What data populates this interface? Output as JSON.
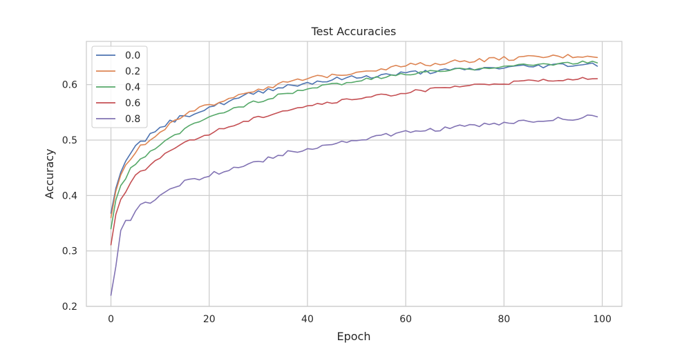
{
  "chart_data": {
    "type": "line",
    "title": "Test Accuracies",
    "xlabel": "Epoch",
    "ylabel": "Accuracy",
    "xlim": [
      -5,
      104
    ],
    "ylim": [
      0.2,
      0.678
    ],
    "xticks": [
      0,
      20,
      40,
      60,
      80,
      100
    ],
    "yticks": [
      0.2,
      0.3,
      0.4,
      0.5,
      0.6
    ],
    "grid": true,
    "legend_position": "top-left",
    "series": [
      {
        "name": "0.0",
        "color": "#4c72b0",
        "anchors": [
          [
            0,
            0.368
          ],
          [
            1,
            0.413
          ],
          [
            2,
            0.442
          ],
          [
            3,
            0.462
          ],
          [
            4,
            0.476
          ],
          [
            5,
            0.49
          ],
          [
            6,
            0.498
          ],
          [
            7,
            0.498
          ],
          [
            8,
            0.512
          ],
          [
            9,
            0.515
          ],
          [
            10,
            0.52
          ],
          [
            12,
            0.532
          ],
          [
            14,
            0.54
          ],
          [
            16,
            0.546
          ],
          [
            18,
            0.552
          ],
          [
            20,
            0.56
          ],
          [
            22,
            0.564
          ],
          [
            24,
            0.57
          ],
          [
            26,
            0.575
          ],
          [
            28,
            0.582
          ],
          [
            30,
            0.586
          ],
          [
            32,
            0.591
          ],
          [
            34,
            0.595
          ],
          [
            36,
            0.598
          ],
          [
            38,
            0.6
          ],
          [
            40,
            0.603
          ],
          [
            42,
            0.606
          ],
          [
            44,
            0.607
          ],
          [
            46,
            0.61
          ],
          [
            48,
            0.612
          ],
          [
            50,
            0.613
          ],
          [
            54,
            0.616
          ],
          [
            58,
            0.619
          ],
          [
            62,
            0.622
          ],
          [
            66,
            0.624
          ],
          [
            70,
            0.626
          ],
          [
            74,
            0.628
          ],
          [
            78,
            0.63
          ],
          [
            82,
            0.632
          ],
          [
            86,
            0.633
          ],
          [
            90,
            0.635
          ],
          [
            94,
            0.636
          ],
          [
            99,
            0.637
          ]
        ],
        "noise": 0.004
      },
      {
        "name": "0.2",
        "color": "#dd8452",
        "anchors": [
          [
            0,
            0.36
          ],
          [
            1,
            0.408
          ],
          [
            2,
            0.437
          ],
          [
            3,
            0.455
          ],
          [
            4,
            0.465
          ],
          [
            5,
            0.477
          ],
          [
            6,
            0.491
          ],
          [
            7,
            0.492
          ],
          [
            8,
            0.5
          ],
          [
            9,
            0.506
          ],
          [
            10,
            0.516
          ],
          [
            12,
            0.528
          ],
          [
            14,
            0.538
          ],
          [
            16,
            0.548
          ],
          [
            18,
            0.556
          ],
          [
            20,
            0.563
          ],
          [
            22,
            0.57
          ],
          [
            24,
            0.576
          ],
          [
            26,
            0.582
          ],
          [
            28,
            0.587
          ],
          [
            30,
            0.592
          ],
          [
            32,
            0.596
          ],
          [
            34,
            0.6
          ],
          [
            36,
            0.604
          ],
          [
            38,
            0.607
          ],
          [
            40,
            0.61
          ],
          [
            44,
            0.616
          ],
          [
            48,
            0.621
          ],
          [
            52,
            0.626
          ],
          [
            56,
            0.63
          ],
          [
            60,
            0.634
          ],
          [
            64,
            0.637
          ],
          [
            68,
            0.64
          ],
          [
            72,
            0.643
          ],
          [
            76,
            0.645
          ],
          [
            80,
            0.647
          ],
          [
            84,
            0.648
          ],
          [
            88,
            0.65
          ],
          [
            92,
            0.651
          ],
          [
            96,
            0.652
          ],
          [
            99,
            0.652
          ]
        ],
        "noise": 0.004
      },
      {
        "name": "0.4",
        "color": "#55a868",
        "anchors": [
          [
            0,
            0.34
          ],
          [
            1,
            0.392
          ],
          [
            2,
            0.418
          ],
          [
            3,
            0.43
          ],
          [
            4,
            0.45
          ],
          [
            5,
            0.456
          ],
          [
            6,
            0.466
          ],
          [
            7,
            0.47
          ],
          [
            8,
            0.48
          ],
          [
            9,
            0.484
          ],
          [
            10,
            0.49
          ],
          [
            12,
            0.503
          ],
          [
            14,
            0.514
          ],
          [
            16,
            0.524
          ],
          [
            18,
            0.532
          ],
          [
            20,
            0.54
          ],
          [
            22,
            0.548
          ],
          [
            24,
            0.554
          ],
          [
            26,
            0.56
          ],
          [
            28,
            0.565
          ],
          [
            30,
            0.57
          ],
          [
            32,
            0.575
          ],
          [
            34,
            0.58
          ],
          [
            36,
            0.585
          ],
          [
            38,
            0.589
          ],
          [
            40,
            0.592
          ],
          [
            44,
            0.598
          ],
          [
            48,
            0.604
          ],
          [
            52,
            0.609
          ],
          [
            56,
            0.614
          ],
          [
            60,
            0.619
          ],
          [
            64,
            0.622
          ],
          [
            68,
            0.625
          ],
          [
            72,
            0.628
          ],
          [
            76,
            0.631
          ],
          [
            80,
            0.633
          ],
          [
            84,
            0.635
          ],
          [
            88,
            0.637
          ],
          [
            92,
            0.639
          ],
          [
            96,
            0.64
          ],
          [
            99,
            0.641
          ]
        ],
        "noise": 0.003
      },
      {
        "name": "0.6",
        "color": "#c44e52",
        "anchors": [
          [
            0,
            0.311
          ],
          [
            1,
            0.366
          ],
          [
            2,
            0.393
          ],
          [
            3,
            0.406
          ],
          [
            4,
            0.423
          ],
          [
            5,
            0.437
          ],
          [
            6,
            0.444
          ],
          [
            7,
            0.446
          ],
          [
            8,
            0.455
          ],
          [
            9,
            0.463
          ],
          [
            10,
            0.47
          ],
          [
            12,
            0.48
          ],
          [
            14,
            0.49
          ],
          [
            16,
            0.498
          ],
          [
            18,
            0.505
          ],
          [
            20,
            0.512
          ],
          [
            22,
            0.519
          ],
          [
            24,
            0.525
          ],
          [
            26,
            0.53
          ],
          [
            28,
            0.536
          ],
          [
            30,
            0.541
          ],
          [
            32,
            0.546
          ],
          [
            34,
            0.551
          ],
          [
            36,
            0.555
          ],
          [
            38,
            0.559
          ],
          [
            40,
            0.562
          ],
          [
            44,
            0.567
          ],
          [
            48,
            0.572
          ],
          [
            52,
            0.577
          ],
          [
            56,
            0.581
          ],
          [
            60,
            0.586
          ],
          [
            64,
            0.59
          ],
          [
            68,
            0.594
          ],
          [
            72,
            0.597
          ],
          [
            76,
            0.6
          ],
          [
            80,
            0.603
          ],
          [
            84,
            0.605
          ],
          [
            88,
            0.607
          ],
          [
            92,
            0.61
          ],
          [
            96,
            0.612
          ],
          [
            99,
            0.612
          ]
        ],
        "noise": 0.003
      },
      {
        "name": "0.8",
        "color": "#8172b3",
        "anchors": [
          [
            0,
            0.22
          ],
          [
            1,
            0.272
          ],
          [
            2,
            0.337
          ],
          [
            3,
            0.355
          ],
          [
            4,
            0.355
          ],
          [
            5,
            0.372
          ],
          [
            6,
            0.384
          ],
          [
            7,
            0.388
          ],
          [
            8,
            0.386
          ],
          [
            9,
            0.392
          ],
          [
            10,
            0.401
          ],
          [
            12,
            0.412
          ],
          [
            14,
            0.42
          ],
          [
            16,
            0.427
          ],
          [
            18,
            0.432
          ],
          [
            20,
            0.437
          ],
          [
            22,
            0.442
          ],
          [
            24,
            0.447
          ],
          [
            26,
            0.452
          ],
          [
            28,
            0.457
          ],
          [
            30,
            0.462
          ],
          [
            32,
            0.467
          ],
          [
            34,
            0.472
          ],
          [
            36,
            0.477
          ],
          [
            38,
            0.481
          ],
          [
            40,
            0.485
          ],
          [
            44,
            0.491
          ],
          [
            48,
            0.497
          ],
          [
            52,
            0.503
          ],
          [
            56,
            0.508
          ],
          [
            60,
            0.513
          ],
          [
            64,
            0.517
          ],
          [
            68,
            0.521
          ],
          [
            72,
            0.524
          ],
          [
            76,
            0.527
          ],
          [
            80,
            0.53
          ],
          [
            84,
            0.533
          ],
          [
            88,
            0.536
          ],
          [
            92,
            0.538
          ],
          [
            96,
            0.541
          ],
          [
            99,
            0.543
          ]
        ],
        "noise": 0.004
      }
    ]
  }
}
